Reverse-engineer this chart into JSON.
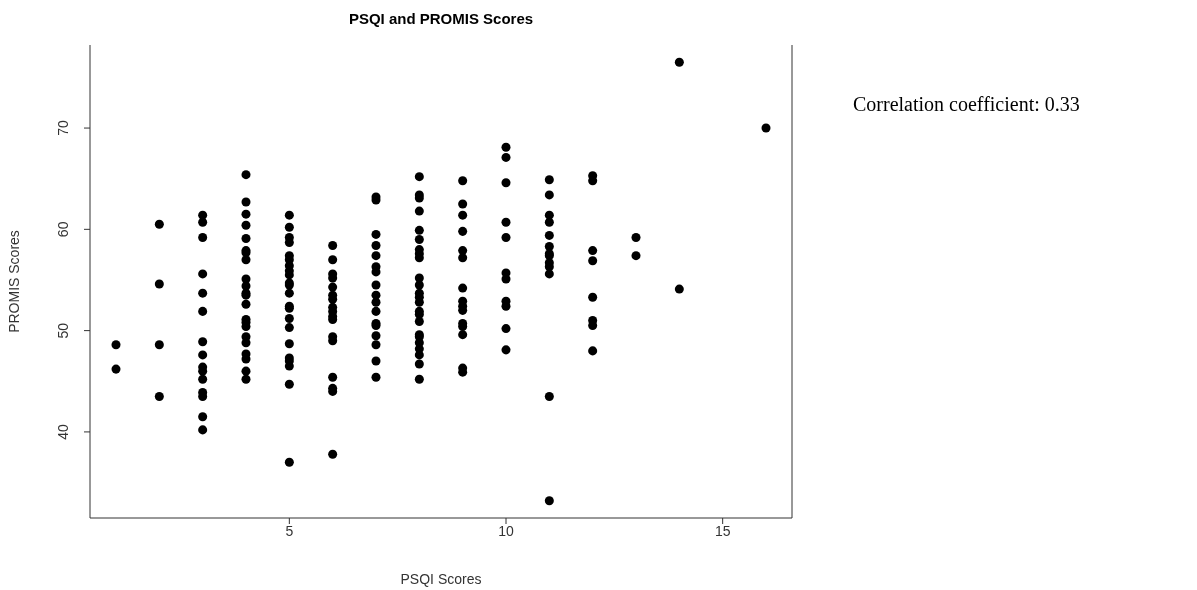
{
  "chart_data": {
    "type": "scatter",
    "title": "PSQI and PROMIS Scores",
    "xlabel": "PSQI Scores",
    "ylabel": "PROMIS Scores",
    "annotations": [
      "Correlation coefficient: 0.33"
    ],
    "x": [
      1,
      1,
      2,
      2,
      2,
      2,
      3,
      3,
      3,
      3,
      3,
      3,
      3,
      3,
      3,
      3,
      3,
      3,
      3,
      3,
      3,
      4,
      4,
      4,
      4,
      4,
      4,
      4,
      4,
      4,
      4,
      4,
      4,
      4,
      4,
      4,
      4,
      4,
      4,
      4,
      4,
      4,
      4,
      5,
      5,
      5,
      5,
      5,
      5,
      5,
      5,
      5,
      5,
      5,
      5,
      5,
      5,
      5,
      5,
      5,
      5,
      5,
      5,
      5,
      5,
      6,
      6,
      6,
      6,
      6,
      6,
      6,
      6,
      6,
      6,
      6,
      6,
      6,
      6,
      6,
      6,
      6,
      7,
      7,
      7,
      7,
      7,
      7,
      7,
      7,
      7,
      7,
      7,
      7,
      7,
      7,
      7,
      7,
      7,
      8,
      8,
      8,
      8,
      8,
      8,
      8,
      8,
      8,
      8,
      8,
      8,
      8,
      8,
      8,
      8,
      8,
      8,
      8,
      8,
      8,
      8,
      8,
      8,
      9,
      9,
      9,
      9,
      9,
      9,
      9,
      9,
      9,
      9,
      9,
      9,
      9,
      9,
      9,
      10,
      10,
      10,
      10,
      10,
      10,
      10,
      10,
      10,
      10,
      10,
      11,
      11,
      11,
      11,
      11,
      11,
      11,
      11,
      11,
      11,
      11,
      11,
      11,
      12,
      12,
      12,
      12,
      12,
      12,
      12,
      12,
      13,
      13,
      14,
      14,
      16
    ],
    "values": [
      48.6,
      46.2,
      60.5,
      54.6,
      48.6,
      43.5,
      61.4,
      60.7,
      59.2,
      55.6,
      53.7,
      51.9,
      48.9,
      47.6,
      46.4,
      46.0,
      45.2,
      43.9,
      43.5,
      41.5,
      40.2,
      65.4,
      62.7,
      61.5,
      60.4,
      59.1,
      57.9,
      57.7,
      57.0,
      55.1,
      54.4,
      53.7,
      53.5,
      52.6,
      51.1,
      50.8,
      50.4,
      49.4,
      48.8,
      47.7,
      47.2,
      46.0,
      45.2,
      61.4,
      60.2,
      59.2,
      58.7,
      57.4,
      57.0,
      56.4,
      55.9,
      55.5,
      54.7,
      54.5,
      53.7,
      52.4,
      52.2,
      51.2,
      50.3,
      48.7,
      47.3,
      47.0,
      46.5,
      44.7,
      37.0,
      58.4,
      57.0,
      55.6,
      55.2,
      54.3,
      53.5,
      53.1,
      52.3,
      51.9,
      51.4,
      51.1,
      49.4,
      49.0,
      45.4,
      44.3,
      44.0,
      37.8,
      63.2,
      62.9,
      59.5,
      58.4,
      57.4,
      56.3,
      55.8,
      54.5,
      53.5,
      52.8,
      51.9,
      50.7,
      50.5,
      49.5,
      48.6,
      47.0,
      45.4,
      65.2,
      63.4,
      63.1,
      61.8,
      59.9,
      59.0,
      58.0,
      57.6,
      57.2,
      55.2,
      54.5,
      53.7,
      53.3,
      52.8,
      51.9,
      51.6,
      50.9,
      49.6,
      49.4,
      48.8,
      48.2,
      47.6,
      46.7,
      45.2,
      64.8,
      62.5,
      61.4,
      59.8,
      57.9,
      57.2,
      54.2,
      52.9,
      52.4,
      52.0,
      50.7,
      50.4,
      49.6,
      46.3,
      45.9,
      68.1,
      67.1,
      64.6,
      60.7,
      59.2,
      55.7,
      55.1,
      52.9,
      52.4,
      50.2,
      48.1,
      64.9,
      63.4,
      61.4,
      60.7,
      59.4,
      58.3,
      57.6,
      57.4,
      56.7,
      56.3,
      55.6,
      43.5,
      33.2,
      65.3,
      64.8,
      57.9,
      56.9,
      53.3,
      51.0,
      50.5,
      48.0,
      59.2,
      57.4,
      76.5,
      54.1,
      70.0
    ],
    "color": "#000000",
    "marker": "circle",
    "xlim": [
      0.4,
      16.6
    ],
    "xticks": [
      5,
      10,
      15
    ],
    "ylim": [
      31.5,
      78.2
    ],
    "yticks": [
      40,
      50,
      60,
      70
    ]
  }
}
